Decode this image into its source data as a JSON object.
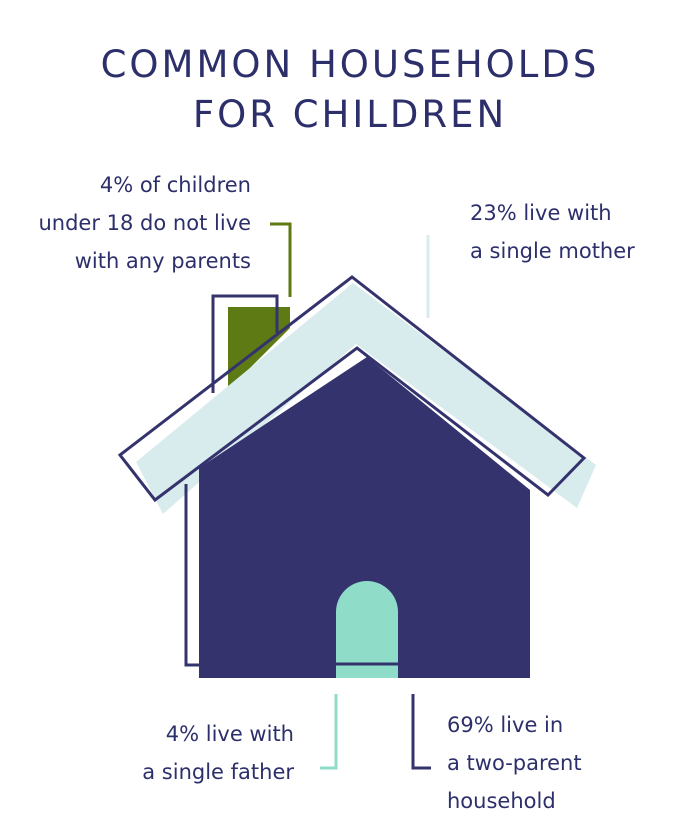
{
  "title": {
    "line1": "COMMON HOUSEHOLDS",
    "line2": "FOR CHILDREN"
  },
  "annotations": {
    "no_parents": {
      "line1": "4% of children",
      "line2": "under 18 do not live",
      "line3": "with any parents"
    },
    "single_mother": {
      "line1": "23% live with",
      "line2": "a single mother"
    },
    "single_father": {
      "line1": "4% live with",
      "line2": "a single father"
    },
    "two_parent": {
      "line1": "69% live in",
      "line2": "a two-parent",
      "line3": "household"
    }
  },
  "household_shares": [
    {
      "category": "no parents",
      "percent": 4
    },
    {
      "category": "single mother",
      "percent": 23
    },
    {
      "category": "single father",
      "percent": 4
    },
    {
      "category": "two-parent household",
      "percent": 69
    }
  ],
  "colors": {
    "navy": "#34336e",
    "roof_light": "#d8ecee",
    "chimney_green": "#5e7a14",
    "door_mint": "#8fdcc9",
    "text": "#2d2f6b"
  }
}
